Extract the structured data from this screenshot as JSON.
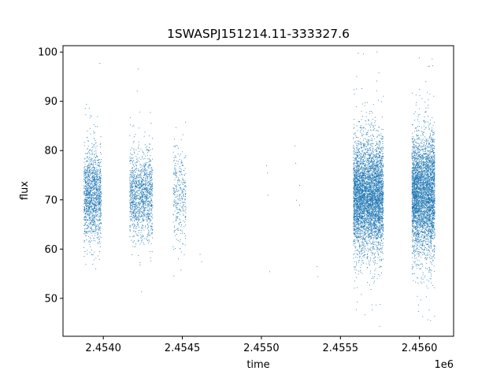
{
  "chart_data": {
    "type": "scatter",
    "title": "1SWASPJ151214.11-333327.6",
    "xlabel": "time",
    "ylabel": "flux",
    "x_offset_label": "1e6",
    "xlim": [
      2453745,
      2456216
    ],
    "ylim": [
      42.3,
      101.3
    ],
    "x_ticks": [
      2454000,
      2454500,
      2455000,
      2455500,
      2456000
    ],
    "x_tick_labels": [
      "2.4540",
      "2.4545",
      "2.4550",
      "2.4555",
      "2.4560"
    ],
    "y_ticks": [
      50,
      60,
      70,
      80,
      90,
      100
    ],
    "y_tick_labels": [
      "50",
      "60",
      "70",
      "80",
      "90",
      "100"
    ],
    "grid": false,
    "marker_color": "#1f77b4",
    "clusters": [
      {
        "x_range": [
          2453875,
          2453985
        ],
        "center": 71,
        "spread": 4.5,
        "count": 1400
      },
      {
        "x_range": [
          2454165,
          2454310
        ],
        "center": 71,
        "spread": 4.5,
        "count": 1300
      },
      {
        "x_range": [
          2454440,
          2454520
        ],
        "center": 71,
        "spread": 5.0,
        "count": 320
      },
      {
        "x_range": [
          2455580,
          2455770
        ],
        "center": 71,
        "spread": 5.5,
        "count": 4800
      },
      {
        "x_range": [
          2455950,
          2456095
        ],
        "center": 71,
        "spread": 6.0,
        "count": 3900
      }
    ],
    "sparse_points": [
      {
        "x": 2454610,
        "y": 59
      },
      {
        "x": 2454620,
        "y": 57.5
      },
      {
        "x": 2455030,
        "y": 77
      },
      {
        "x": 2455035,
        "y": 75.5
      },
      {
        "x": 2455040,
        "y": 71
      },
      {
        "x": 2455050,
        "y": 55.5
      },
      {
        "x": 2455210,
        "y": 81
      },
      {
        "x": 2455215,
        "y": 77.5
      },
      {
        "x": 2455220,
        "y": 70
      },
      {
        "x": 2455240,
        "y": 69
      },
      {
        "x": 2455240,
        "y": 73
      },
      {
        "x": 2455350,
        "y": 56.5
      },
      {
        "x": 2455355,
        "y": 54.5
      }
    ]
  }
}
